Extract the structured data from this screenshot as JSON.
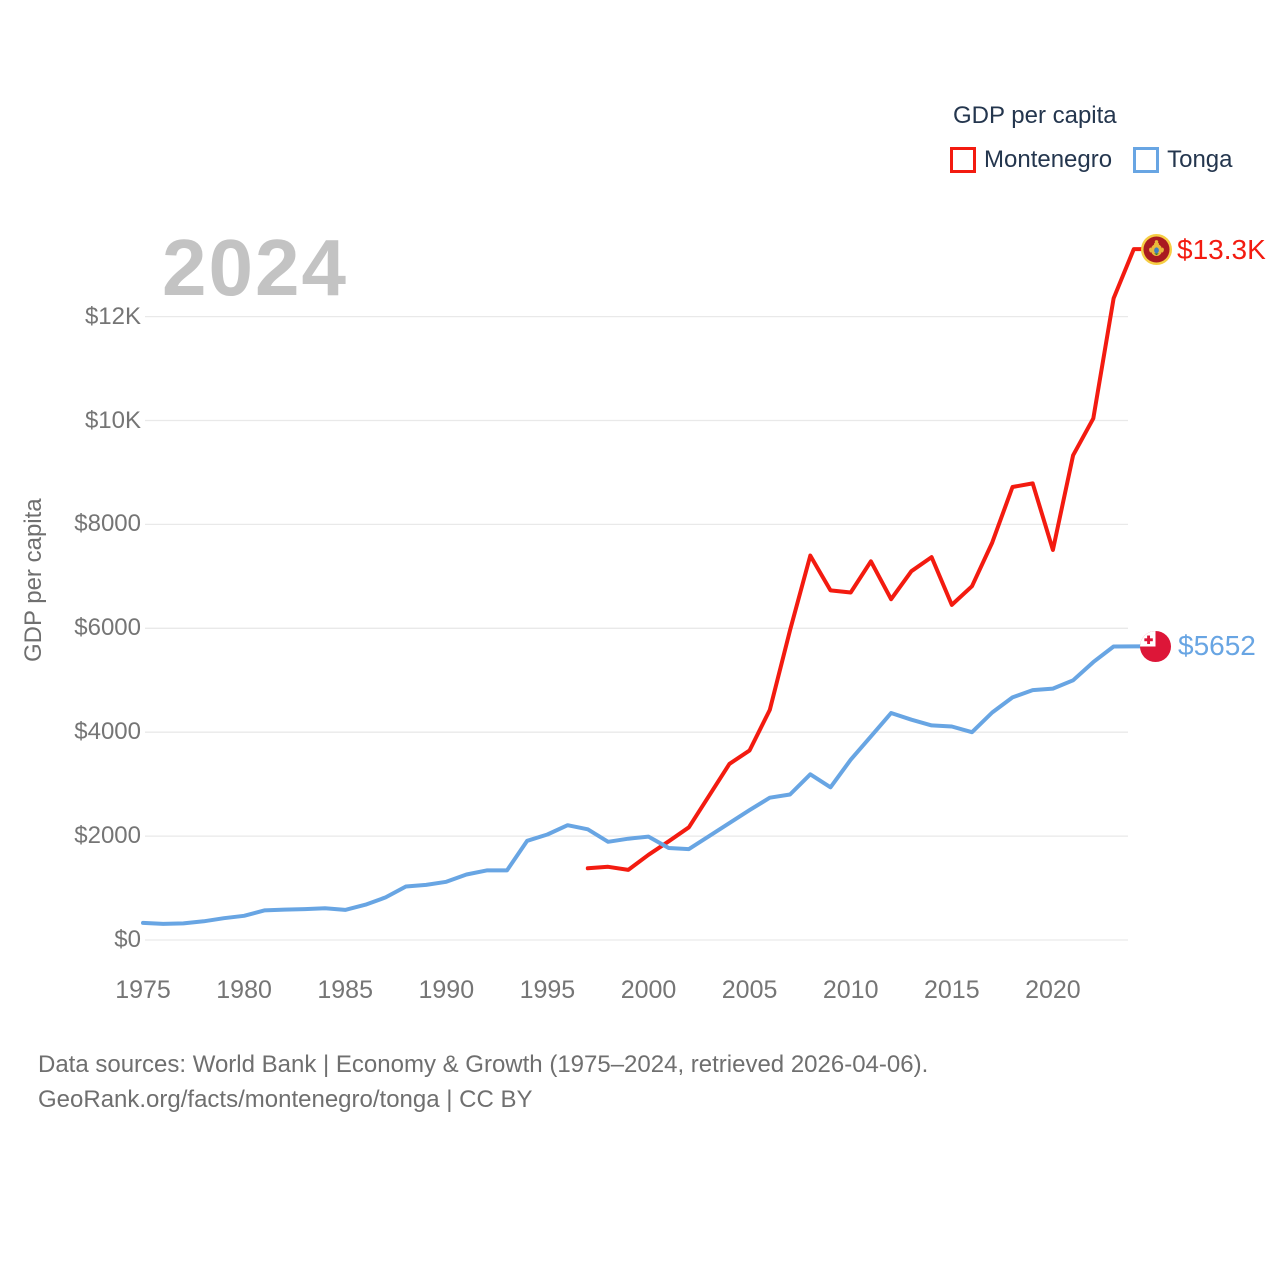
{
  "legend": {
    "title": "GDP per capita",
    "items": [
      {
        "label": "Montenegro",
        "color": "#f31b10"
      },
      {
        "label": "Tonga",
        "color": "#68a5e3"
      }
    ]
  },
  "footer": {
    "line1": "Data sources: World Bank | Economy & Growth (1975–2024, retrieved 2026-04-06).",
    "line2": "GeoRank.org/facts/montenegro/tonga | CC BY"
  },
  "chart_data": {
    "type": "line",
    "title": "GDP per capita",
    "watermark": "2024",
    "grid": "horizontal",
    "grid_color": "#e9e9e9",
    "legend_position": "top-right",
    "x_axis": {
      "range": [
        1975,
        2024
      ],
      "ticks": [
        1975,
        1980,
        1985,
        1990,
        1995,
        2000,
        2005,
        2010,
        2015,
        2020
      ]
    },
    "y_axis": {
      "title": "GDP per capita",
      "range": [
        0,
        13500
      ],
      "ticks": [
        {
          "value": 0,
          "label": "$0"
        },
        {
          "value": 2000,
          "label": "$2000"
        },
        {
          "value": 4000,
          "label": "$4000"
        },
        {
          "value": 6000,
          "label": "$6000"
        },
        {
          "value": 8000,
          "label": "$8000"
        },
        {
          "value": 10000,
          "label": "$10K"
        },
        {
          "value": 12000,
          "label": "$12K"
        }
      ]
    },
    "series": [
      {
        "name": "Montenegro",
        "color": "#f31b10",
        "start_year": 1997,
        "end_year": 2024,
        "end_label": "$13.3K",
        "values": [
          1380,
          1410,
          1350,
          1640,
          1900,
          2170,
          2780,
          3390,
          3650,
          4430,
          5960,
          7400,
          6730,
          6690,
          7290,
          6560,
          7100,
          7370,
          6450,
          6810,
          7650,
          8720,
          8790,
          7510,
          9330,
          10040,
          12350,
          13300
        ]
      },
      {
        "name": "Tonga",
        "color": "#68a5e3",
        "start_year": 1975,
        "end_year": 2024,
        "end_label": "$5652",
        "values": [
          330,
          310,
          320,
          360,
          420,
          465,
          570,
          585,
          595,
          610,
          580,
          680,
          820,
          1030,
          1060,
          1120,
          1260,
          1340,
          1340,
          1910,
          2030,
          2210,
          2130,
          1890,
          1950,
          1990,
          1770,
          1750,
          2000,
          2250,
          2500,
          2740,
          2800,
          3190,
          2940,
          3470,
          3920,
          4370,
          4240,
          4130,
          4110,
          4000,
          4380,
          4670,
          4810,
          4840,
          5000,
          5350,
          5650,
          5652
        ]
      }
    ]
  }
}
